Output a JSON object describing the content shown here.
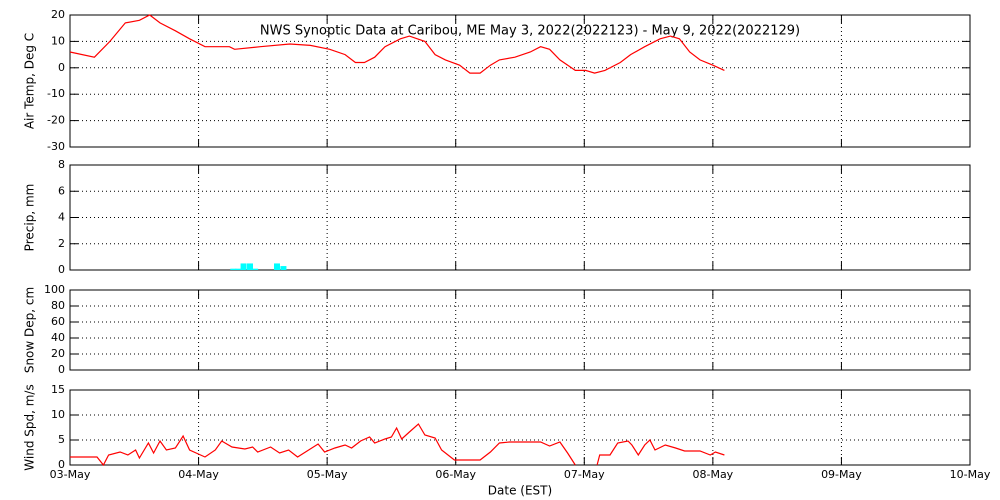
{
  "chart_data": [
    {
      "type": "line",
      "title": "NWS Synoptic Data at Caribou, ME   May  3, 2022(2022123) - May  9, 2022(2022129)",
      "ylabel": "Air Temp, Deg C",
      "xlim": [
        0,
        7
      ],
      "xticks": [
        0,
        1,
        2,
        3,
        4,
        5,
        6,
        7
      ],
      "ylim": [
        -30,
        20
      ],
      "yticks": [
        -30,
        -20,
        -10,
        0,
        10,
        20
      ],
      "grid": true,
      "series": [
        {
          "color": "#ff0000",
          "x": [
            0,
            0.19,
            0.31,
            0.43,
            0.54,
            0.62,
            0.7,
            0.82,
            0.93,
            1.05,
            1.24,
            1.28,
            1.48,
            1.71,
            1.87,
            2.02,
            2.14,
            2.22,
            2.29,
            2.37,
            2.45,
            2.57,
            2.64,
            2.76,
            2.84,
            2.92,
            3.03,
            3.11,
            3.19,
            3.27,
            3.34,
            3.46,
            3.58,
            3.66,
            3.73,
            3.81,
            3.93,
            4.01,
            4.08,
            4.16,
            4.28,
            4.36,
            4.47,
            4.59,
            4.67,
            4.74,
            4.82,
            4.9,
            5.0,
            5.09
          ],
          "values": [
            6,
            4,
            10,
            17,
            18,
            20,
            17,
            14,
            11,
            8,
            8,
            7,
            8,
            9,
            8.5,
            7,
            5,
            2,
            2,
            4,
            8,
            11,
            12,
            10,
            5,
            3,
            1,
            -2,
            -2,
            1,
            3,
            4,
            6,
            8,
            7,
            3,
            -1,
            -1,
            -2,
            -1,
            2,
            5,
            8,
            11,
            12,
            11,
            6,
            3,
            1,
            -1
          ]
        }
      ]
    },
    {
      "type": "bar",
      "ylabel": "Precip, mm",
      "xlim": [
        0,
        7
      ],
      "xticks": [
        0,
        1,
        2,
        3,
        4,
        5,
        6,
        7
      ],
      "ylim": [
        0,
        8
      ],
      "yticks": [
        0,
        2,
        4,
        6,
        8
      ],
      "grid": true,
      "series": [
        {
          "color": "#00ffff",
          "x": [
            1.27,
            1.31,
            1.35,
            1.4,
            1.44,
            1.61,
            1.66
          ],
          "values": [
            0.1,
            0.1,
            0.5,
            0.5,
            0.1,
            0.5,
            0.3
          ]
        }
      ]
    },
    {
      "type": "line",
      "ylabel": "Snow Dep, cm",
      "xlim": [
        0,
        7
      ],
      "xticks": [
        0,
        1,
        2,
        3,
        4,
        5,
        6,
        7
      ],
      "ylim": [
        0,
        100
      ],
      "yticks": [
        0,
        20,
        40,
        60,
        80,
        100
      ],
      "grid": true,
      "series": []
    },
    {
      "type": "line",
      "ylabel": "Wind Spd, m/s",
      "xlabel": "Date (EST)",
      "xlim": [
        0,
        7
      ],
      "xticks": [
        {
          "value": 0,
          "label": "03-May"
        },
        {
          "value": 1,
          "label": "04-May"
        },
        {
          "value": 2,
          "label": "05-May"
        },
        {
          "value": 3,
          "label": "06-May"
        },
        {
          "value": 4,
          "label": "07-May"
        },
        {
          "value": 5,
          "label": "08-May"
        },
        {
          "value": 6,
          "label": "09-May"
        },
        {
          "value": 7,
          "label": "10-May"
        }
      ],
      "ylim": [
        0,
        15
      ],
      "yticks": [
        0,
        5,
        10,
        15
      ],
      "grid": true,
      "series": [
        {
          "color": "#ff0000",
          "x": [
            0,
            0.21,
            0.26,
            0.3,
            0.39,
            0.45,
            0.51,
            0.54,
            0.61,
            0.65,
            0.7,
            0.75,
            0.82,
            0.88,
            0.93,
            1.05,
            1.13,
            1.18,
            1.26,
            1.36,
            1.42,
            1.46,
            1.56,
            1.63,
            1.7,
            1.77,
            1.93,
            1.98,
            2.06,
            2.14,
            2.19,
            2.26,
            2.33,
            2.37,
            2.45,
            2.5,
            2.54,
            2.58,
            2.64,
            2.71,
            2.76,
            2.84,
            2.89,
            2.99,
            3.19,
            3.27,
            3.34,
            3.42,
            3.66,
            3.73,
            3.81,
            3.87,
            3.93,
            4.0,
            4.1,
            4.12,
            4.2,
            4.26,
            4.34,
            4.37,
            4.42,
            4.47,
            4.51,
            4.55,
            4.63,
            4.71,
            4.78,
            4.9,
            4.98,
            5.02,
            5.09
          ],
          "values": [
            1.6,
            1.6,
            0,
            2,
            2.6,
            2,
            3,
            1.4,
            4.4,
            2.4,
            4.8,
            3,
            3.4,
            5.8,
            3,
            1.6,
            3,
            4.8,
            3.6,
            3.2,
            3.6,
            2.6,
            3.6,
            2.4,
            3,
            1.6,
            4.2,
            2.6,
            3.4,
            4,
            3.4,
            4.8,
            5.6,
            4.4,
            5.2,
            5.6,
            7.4,
            5.2,
            6.6,
            8.2,
            6,
            5.4,
            3,
            1,
            1,
            2.6,
            4.4,
            4.6,
            4.6,
            3.8,
            4.6,
            2.4,
            0,
            null,
            0,
            2,
            2,
            4.4,
            4.8,
            4,
            2,
            4,
            5,
            3,
            4,
            3.4,
            2.8,
            2.8,
            2,
            2.6,
            2
          ]
        }
      ]
    }
  ]
}
